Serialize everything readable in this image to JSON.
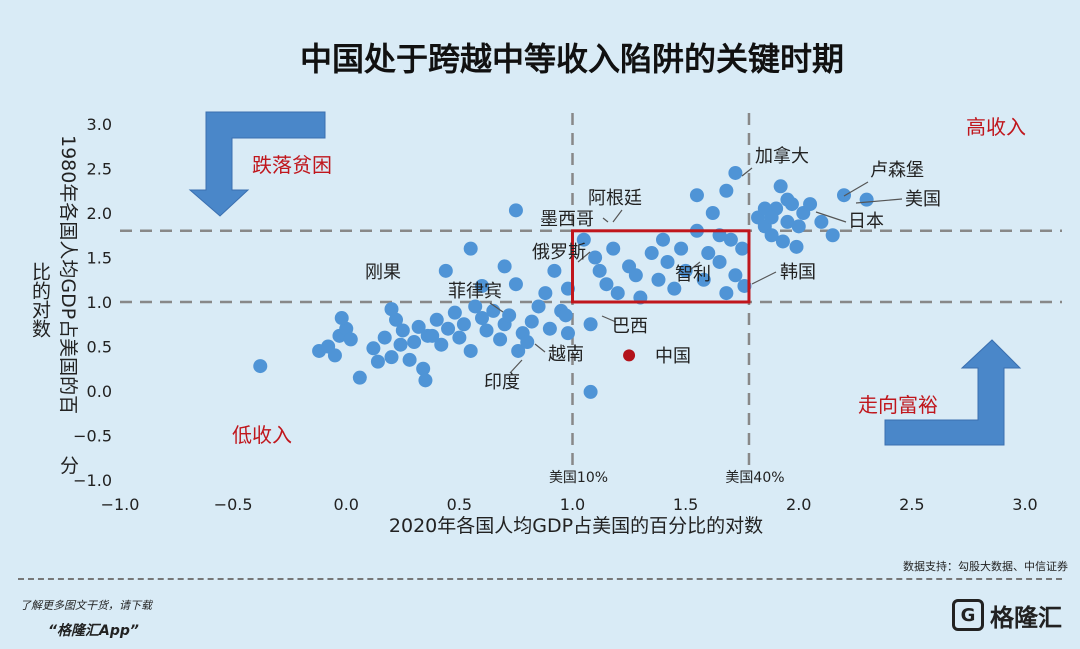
{
  "chart_data": {
    "type": "scatter",
    "title": "中国处于跨越中等收入陷阱的关键时期",
    "xlabel": "2020年各国人均GDP占美国的百分比的对数",
    "ylabel_line1": "1980年各国人均GDP占美国的百",
    "ylabel_line2": "比的对数",
    "ylabel_line3": "分",
    "xlim": [
      -1.0,
      3.0
    ],
    "ylim": [
      -1.0,
      3.0
    ],
    "x_ticks": [
      "−1.0",
      "−0.5",
      "0.0",
      "0.5",
      "1.0",
      "1.5",
      "2.0",
      "2.5",
      "3.0"
    ],
    "y_ticks": [
      "3.0",
      "2.5",
      "2.0",
      "1.5",
      "1.0",
      "0.5",
      "0.0",
      "−0.5",
      "−1.0"
    ],
    "grid": false,
    "ref_lines": {
      "vertical": [
        {
          "x": 1.0,
          "label": "美国10%"
        },
        {
          "x": 1.78,
          "label": "美国40%"
        }
      ],
      "horizontal": [
        {
          "y": 1.0
        },
        {
          "y": 1.8
        }
      ]
    },
    "highlight_box": {
      "x": [
        1.0,
        1.78
      ],
      "y": [
        1.0,
        1.8
      ]
    },
    "quadrant_labels": {
      "top_left": "跌落贫困",
      "top_right": "高收入",
      "bottom_left": "低收入",
      "bottom_right": "走向富裕"
    },
    "country_labels": [
      "加拿大",
      "卢森堡",
      "美国",
      "日本",
      "阿根廷",
      "墨西哥",
      "俄罗斯",
      "刚果",
      "智利",
      "韩国",
      "菲律宾",
      "巴西",
      "中国",
      "越南",
      "印度"
    ],
    "highlight_point": {
      "name": "中国",
      "x": 1.25,
      "y": 0.4
    },
    "points": [
      [
        -0.38,
        0.28
      ],
      [
        -0.12,
        0.45
      ],
      [
        -0.08,
        0.5
      ],
      [
        -0.05,
        0.4
      ],
      [
        -0.03,
        0.62
      ],
      [
        0.0,
        0.7
      ],
      [
        0.02,
        0.58
      ],
      [
        0.06,
        0.15
      ],
      [
        0.12,
        0.48
      ],
      [
        0.14,
        0.33
      ],
      [
        0.17,
        0.6
      ],
      [
        0.2,
        0.38
      ],
      [
        0.22,
        0.8
      ],
      [
        0.25,
        0.68
      ],
      [
        0.24,
        0.52
      ],
      [
        0.28,
        0.35
      ],
      [
        0.3,
        0.55
      ],
      [
        0.32,
        0.72
      ],
      [
        0.34,
        0.25
      ],
      [
        0.36,
        0.62
      ],
      [
        0.4,
        0.8
      ],
      [
        0.42,
        0.52
      ],
      [
        0.45,
        0.7
      ],
      [
        0.48,
        0.88
      ],
      [
        0.5,
        0.6
      ],
      [
        0.52,
        0.75
      ],
      [
        0.55,
        0.45
      ],
      [
        0.57,
        0.95
      ],
      [
        0.6,
        0.82
      ],
      [
        0.62,
        0.68
      ],
      [
        0.65,
        0.9
      ],
      [
        0.68,
        0.58
      ],
      [
        0.7,
        0.75
      ],
      [
        0.72,
        0.85
      ],
      [
        0.75,
        1.2
      ],
      [
        0.76,
        0.45
      ],
      [
        0.78,
        0.65
      ],
      [
        0.8,
        0.55
      ],
      [
        0.82,
        0.78
      ],
      [
        0.85,
        0.95
      ],
      [
        0.88,
        1.1
      ],
      [
        0.9,
        0.7
      ],
      [
        0.92,
        1.35
      ],
      [
        0.95,
        0.9
      ],
      [
        0.98,
        1.15
      ],
      [
        0.75,
        2.03
      ],
      [
        0.55,
        1.6
      ],
      [
        0.7,
        1.4
      ],
      [
        0.35,
        0.12
      ],
      [
        0.98,
        0.65
      ],
      [
        0.97,
        0.85
      ],
      [
        1.08,
        0.75
      ],
      [
        1.08,
        -0.01
      ],
      [
        1.05,
        1.7
      ],
      [
        1.1,
        1.5
      ],
      [
        1.12,
        1.35
      ],
      [
        1.15,
        1.2
      ],
      [
        1.18,
        1.6
      ],
      [
        1.2,
        1.1
      ],
      [
        1.25,
        1.4
      ],
      [
        1.28,
        1.3
      ],
      [
        1.3,
        1.05
      ],
      [
        1.35,
        1.55
      ],
      [
        1.38,
        1.25
      ],
      [
        1.4,
        1.7
      ],
      [
        1.42,
        1.45
      ],
      [
        1.45,
        1.15
      ],
      [
        1.48,
        1.6
      ],
      [
        1.5,
        1.35
      ],
      [
        1.55,
        1.8
      ],
      [
        1.58,
        1.25
      ],
      [
        1.6,
        1.55
      ],
      [
        1.62,
        2.0
      ],
      [
        1.65,
        1.45
      ],
      [
        1.68,
        1.1
      ],
      [
        1.7,
        1.7
      ],
      [
        1.72,
        1.3
      ],
      [
        1.75,
        1.6
      ],
      [
        1.76,
        1.18
      ],
      [
        1.68,
        2.25
      ],
      [
        1.55,
        2.2
      ],
      [
        1.65,
        1.75
      ],
      [
        1.72,
        2.45
      ],
      [
        1.82,
        1.95
      ],
      [
        1.85,
        1.85
      ],
      [
        1.88,
        1.75
      ],
      [
        1.9,
        2.05
      ],
      [
        1.92,
        2.3
      ],
      [
        1.95,
        1.9
      ],
      [
        1.97,
        2.1
      ],
      [
        2.0,
        1.85
      ],
      [
        2.02,
        2.0
      ],
      [
        2.05,
        2.1
      ],
      [
        1.93,
        1.68
      ],
      [
        1.99,
        1.62
      ],
      [
        2.1,
        1.9
      ],
      [
        2.15,
        1.75
      ],
      [
        2.2,
        2.2
      ],
      [
        2.3,
        2.15
      ],
      [
        1.85,
        2.05
      ],
      [
        1.88,
        1.95
      ],
      [
        1.95,
        2.15
      ],
      [
        0.38,
        0.62
      ],
      [
        0.44,
        1.35
      ],
      [
        -0.02,
        0.82
      ],
      [
        0.2,
        0.92
      ],
      [
        0.6,
        1.18
      ]
    ]
  },
  "source_note": "数据支持：勾股大数据、中信证券",
  "footer": {
    "line1": "了解更多图文干货，请下载",
    "line2": "“格隆汇App”",
    "brand": "格隆汇"
  },
  "colors": {
    "point": "#4f94d6",
    "highlight": "#b3131b",
    "box": "#c0161c",
    "arrow": "#4a87c9",
    "ref_line": "#888888"
  }
}
